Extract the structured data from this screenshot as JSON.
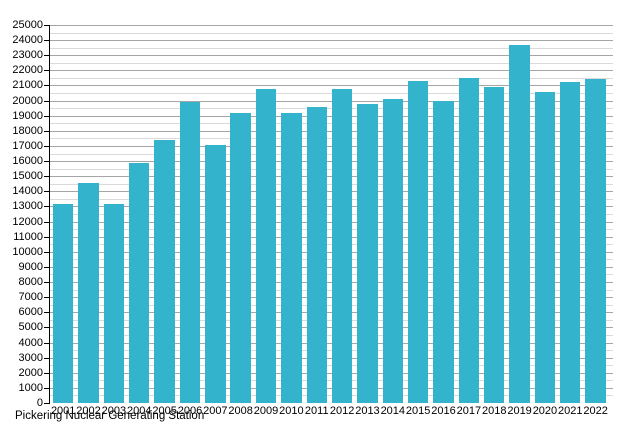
{
  "chart_data": {
    "type": "bar",
    "title": "Pickering Nuclear Generating Station",
    "categories": [
      "2001",
      "2002",
      "2003",
      "2004",
      "2005",
      "2006",
      "2007",
      "2008",
      "2009",
      "2010",
      "2011",
      "2012",
      "2013",
      "2014",
      "2015",
      "2016",
      "2017",
      "2018",
      "2019",
      "2020",
      "2021",
      "2022"
    ],
    "values": [
      13150,
      14550,
      13150,
      15850,
      17400,
      19900,
      17050,
      19200,
      20750,
      19200,
      19600,
      20750,
      19800,
      20100,
      21300,
      20000,
      21500,
      20900,
      23700,
      20600,
      21200,
      21400
    ],
    "xlabel": "",
    "ylabel": "",
    "ylim": [
      0,
      25000
    ],
    "y_major_step": 1000,
    "y_minor_step": 500,
    "grid": true,
    "legend": "none",
    "bar_color": "#33B3CC",
    "major_grid_color": "#a5a5a5",
    "minor_grid_color": "#dadada",
    "axis_color": "#000000",
    "background": "#FFFFFF"
  }
}
